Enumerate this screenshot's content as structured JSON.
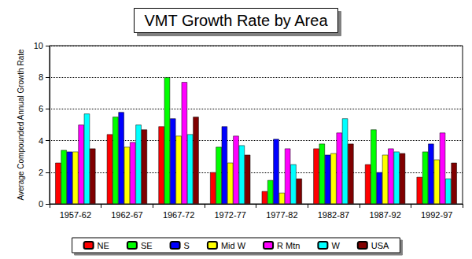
{
  "chart_data": {
    "type": "bar",
    "title": "VMT Growth Rate by Area",
    "y_label": "Average Compounded Annual Growth Rate",
    "categories": [
      "1957-62",
      "1962-67",
      "1967-72",
      "1972-77",
      "1977-82",
      "1982-87",
      "1987-92",
      "1992-97"
    ],
    "series": [
      {
        "name": "NE",
        "color": "#ff0000",
        "values": [
          2.6,
          4.4,
          4.9,
          2.0,
          0.8,
          3.5,
          2.5,
          1.7
        ]
      },
      {
        "name": "SE",
        "color": "#00ff00",
        "values": [
          3.4,
          5.5,
          8.0,
          3.6,
          1.5,
          3.8,
          4.7,
          3.3
        ]
      },
      {
        "name": "S",
        "color": "#0000ff",
        "values": [
          3.3,
          5.8,
          5.4,
          4.9,
          4.1,
          3.1,
          2.0,
          3.8
        ]
      },
      {
        "name": "Mid W",
        "color": "#ffff00",
        "values": [
          3.3,
          3.6,
          4.3,
          2.6,
          0.7,
          3.2,
          3.1,
          2.8
        ]
      },
      {
        "name": "R Mtn",
        "color": "#ff00ff",
        "values": [
          5.0,
          3.9,
          7.7,
          4.3,
          3.5,
          4.5,
          3.5,
          4.5
        ]
      },
      {
        "name": "W",
        "color": "#00ffff",
        "values": [
          5.7,
          5.0,
          4.4,
          3.7,
          2.5,
          5.4,
          3.3,
          1.6
        ]
      },
      {
        "name": "USA",
        "color": "#800000",
        "values": [
          3.5,
          4.7,
          5.5,
          3.1,
          1.6,
          3.8,
          3.2,
          2.6
        ]
      }
    ],
    "ylim": [
      0,
      10
    ],
    "yticks": [
      0,
      2,
      4,
      6,
      8,
      10
    ],
    "grid": true,
    "legend": "bottom"
  }
}
